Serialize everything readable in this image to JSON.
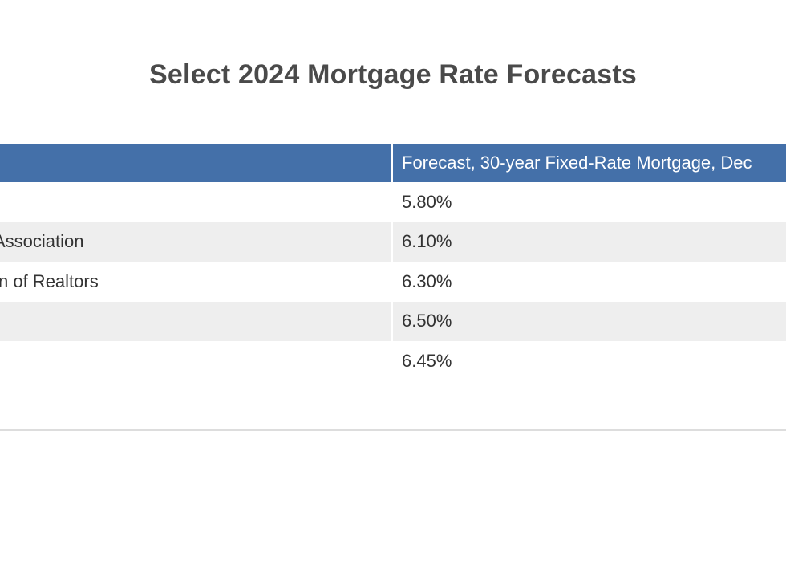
{
  "chart_data": {
    "type": "table",
    "title": "Select 2024 Mortgage Rate Forecasts",
    "columns": [
      "",
      "Forecast, 30-year Fixed-Rate Mortgage, Dec"
    ],
    "rows": [
      {
        "source": "",
        "forecast": "5.80%"
      },
      {
        "source": "Association",
        "forecast": "6.10%"
      },
      {
        "source": "n of Realtors",
        "forecast": "6.30%"
      },
      {
        "source": "",
        "forecast": "6.50%"
      },
      {
        "source": "",
        "forecast": "6.45%"
      }
    ],
    "values": [
      5.8,
      6.1,
      6.3,
      6.5,
      6.45
    ]
  },
  "colors": {
    "header_bg": "#4470a9",
    "alt_row_bg": "#eeeeee",
    "title_color": "#4a4a4a"
  }
}
